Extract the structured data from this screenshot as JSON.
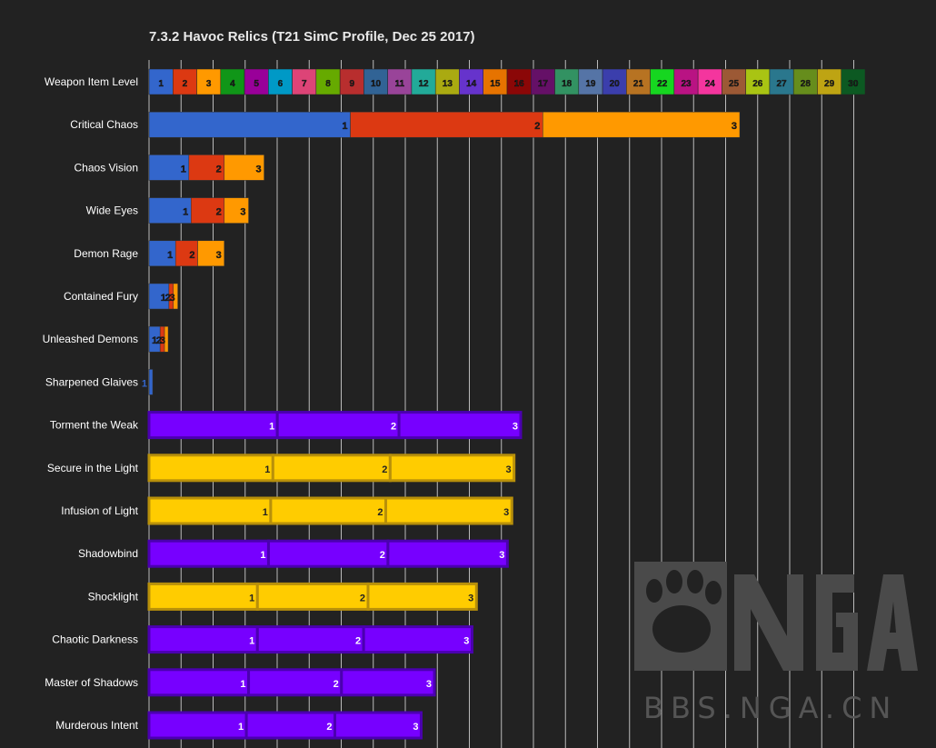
{
  "watermark": {
    "text": "BBS.NGA.CN",
    "logo_text": "NGA"
  },
  "chart_data": {
    "type": "bar",
    "stacked": true,
    "orientation": "horizontal",
    "title": "7.3.2 Havoc Relics (T21 SimC Profile, Dec 25 2017)",
    "grid": true,
    "background": "#222222",
    "categories": [
      "Weapon Item Level",
      "Critical Chaos",
      "Chaos Vision",
      "Wide Eyes",
      "Demon Rage",
      "Contained Fury",
      "Unleashed Demons",
      "Sharpened Glaives",
      "Torment the Weak",
      "Secure in the Light",
      "Infusion of Light",
      "Shadowbind",
      "Shocklight",
      "Chaotic Darkness",
      "Master of Shadows",
      "Murderous Intent"
    ],
    "rank_colors": [
      "#3366cc",
      "#dc3912",
      "#ff9900"
    ],
    "weapon_colors": [
      "#3366cc",
      "#dc3912",
      "#ff9900",
      "#109618",
      "#990099",
      "#0099c6",
      "#dd4477",
      "#66aa00",
      "#b82e2e",
      "#316395",
      "#994499",
      "#22aa99",
      "#aaaa11",
      "#6633cc",
      "#e67300",
      "#8b0707",
      "#651067",
      "#329262",
      "#5574a6",
      "#3b3eac",
      "#b77322",
      "#16d620",
      "#b91383",
      "#f4359e",
      "#9c5935",
      "#a9c413",
      "#2a778d",
      "#668d1c",
      "#bea413",
      "#0c5922"
    ],
    "purple_color": "#7700ff",
    "gold_color": "#ffcc00",
    "series": [
      {
        "category": "Weapon Item Level",
        "segments": [
          1,
          1,
          1,
          1,
          1,
          1,
          1,
          1,
          1,
          1,
          1,
          1,
          1,
          1,
          1,
          1,
          1,
          1,
          1,
          1,
          1,
          1,
          1,
          1,
          1,
          1,
          1,
          1,
          1,
          1
        ],
        "labels": [
          "1",
          "2",
          "3",
          "4",
          "5",
          "6",
          "7",
          "8",
          "9",
          "10",
          "11",
          "12",
          "13",
          "14",
          "15",
          "16",
          "17",
          "18",
          "19",
          "20",
          "21",
          "22",
          "23",
          "24",
          "25",
          "26",
          "27",
          "28",
          "29",
          "30"
        ],
        "style": "weapon"
      },
      {
        "category": "Critical Chaos",
        "segments": [
          9.1,
          8.7,
          8.9
        ],
        "labels": [
          "1",
          "2",
          "3"
        ],
        "style": "rank"
      },
      {
        "category": "Chaos Vision",
        "segments": [
          1.8,
          1.6,
          1.8
        ],
        "labels": [
          "1",
          "2",
          "3"
        ],
        "style": "rank"
      },
      {
        "category": "Wide Eyes",
        "segments": [
          1.9,
          1.5,
          1.1
        ],
        "labels": [
          "1",
          "2",
          "3"
        ],
        "style": "rank"
      },
      {
        "category": "Demon Rage",
        "segments": [
          1.2,
          1.0,
          1.2
        ],
        "labels": [
          "1",
          "2",
          "3"
        ],
        "style": "rank"
      },
      {
        "category": "Contained Fury",
        "segments": [
          0.9,
          0.2,
          0.2
        ],
        "labels": [
          "1",
          "2",
          "3"
        ],
        "style": "rank"
      },
      {
        "category": "Unleashed Demons",
        "segments": [
          0.5,
          0.2,
          0.1
        ],
        "labels": [
          "1",
          "2",
          "3"
        ],
        "style": "rank"
      },
      {
        "category": "Sharpened Glaives",
        "segments": [
          0.15
        ],
        "labels": [
          "1"
        ],
        "style": "rank"
      },
      {
        "category": "Torment the Weak",
        "segments": [
          5.8,
          5.5,
          5.5
        ],
        "labels": [
          "1",
          "2",
          "3"
        ],
        "style": "purple"
      },
      {
        "category": "Secure in the Light",
        "segments": [
          5.6,
          5.3,
          5.6
        ],
        "labels": [
          "1",
          "2",
          "3"
        ],
        "style": "gold"
      },
      {
        "category": "Infusion of Light",
        "segments": [
          5.5,
          5.2,
          5.7
        ],
        "labels": [
          "1",
          "2",
          "3"
        ],
        "style": "gold"
      },
      {
        "category": "Shadowbind",
        "segments": [
          5.4,
          5.4,
          5.4
        ],
        "labels": [
          "1",
          "2",
          "3"
        ],
        "style": "purple"
      },
      {
        "category": "Shocklight",
        "segments": [
          4.9,
          5.0,
          4.9
        ],
        "labels": [
          "1",
          "2",
          "3"
        ],
        "style": "gold"
      },
      {
        "category": "Chaotic Darkness",
        "segments": [
          4.9,
          4.8,
          4.9
        ],
        "labels": [
          "1",
          "2",
          "3"
        ],
        "style": "purple"
      },
      {
        "category": "Master of Shadows",
        "segments": [
          4.5,
          4.2,
          4.2
        ],
        "labels": [
          "1",
          "2",
          "3"
        ],
        "style": "purple"
      },
      {
        "category": "Murderous Intent",
        "segments": [
          4.4,
          4.0,
          3.9
        ],
        "labels": [
          "1",
          "2",
          "3"
        ],
        "style": "purple"
      }
    ]
  }
}
